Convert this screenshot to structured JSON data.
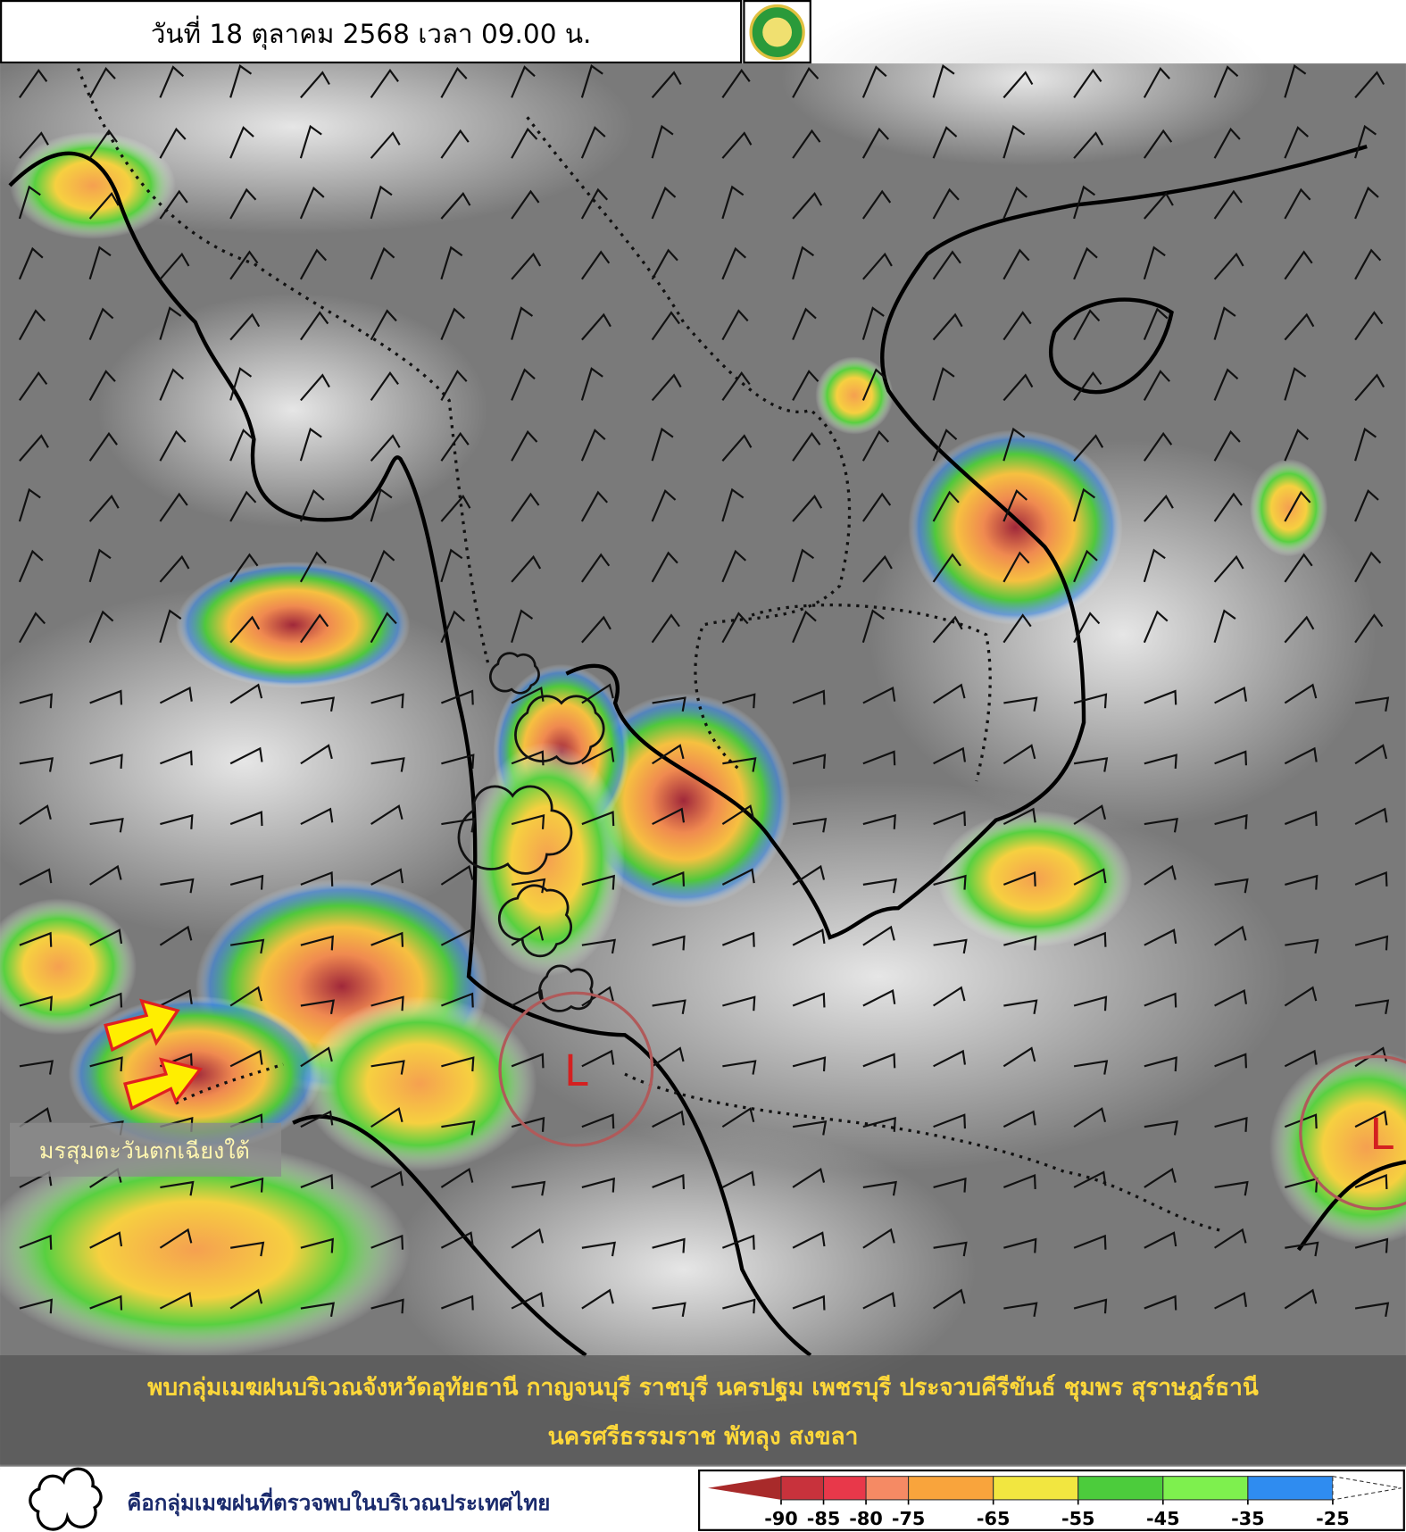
{
  "header": {
    "date": "วันที่ 18 ตุลาคม 2568 เวลา 09.00 น."
  },
  "map": {
    "monsoon_label": "มรสุมตะวันตกเฉียงใต้",
    "low_markers": [
      "L",
      "L"
    ]
  },
  "summary": {
    "lines": [
      "พบกลุ่มเมฆฝนบริเวณจังหวัดอุทัยธานี กาญจนบุรี ราชบุรี นครปฐม เพชรบุรี ประจวบคีรีขันธ์ ชุมพร สุราษฎร์ธานี",
      "นครศรีธรรมราช พัทลุง สงขลา"
    ]
  },
  "legend": {
    "text": "คือกลุ่มเมฆฝนที่ตรวจพบในบริเวณประเทศไทย"
  },
  "colorbar": {
    "ticks": [
      -90,
      -85,
      -80,
      -75,
      -65,
      -55,
      -45,
      -35,
      -25
    ],
    "colors": [
      "#a82a2a",
      "#c8323c",
      "#e8384a",
      "#f58a64",
      "#f9a43c",
      "#f2e640",
      "#4ccc3c",
      "#7ef04e",
      "#2f8cf0"
    ]
  }
}
